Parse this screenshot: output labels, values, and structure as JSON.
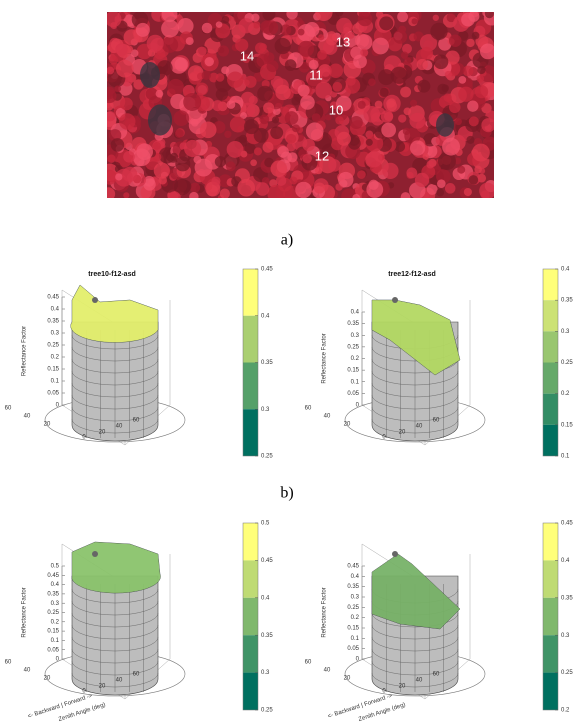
{
  "panel_a": {
    "tree_labels": [
      "14",
      "13",
      "11",
      "10",
      "12"
    ],
    "caption": "a)"
  },
  "panel_b": {
    "caption": "b)",
    "plots": [
      {
        "title": "tree10-f12-asd",
        "z_label": "Reflectance Factor",
        "zticks": [
          0.45,
          0.4,
          0.35,
          0.3,
          0.25,
          0.2,
          0.15,
          0.1,
          0.05,
          0
        ],
        "xticks": [
          60,
          40,
          20,
          0,
          20,
          40,
          60
        ],
        "colorbar_ticks": [
          0.45,
          0.4,
          0.35,
          0.3,
          0.25
        ]
      },
      {
        "title": "tree12-f12-asd",
        "z_label": "Reflectance Factor",
        "zticks": [
          0.4,
          0.35,
          0.3,
          0.25,
          0.2,
          0.15,
          0.1,
          0.05,
          0
        ],
        "xticks": [
          60,
          40,
          20,
          0,
          20,
          40,
          60
        ],
        "colorbar_ticks": [
          0.4,
          0.35,
          0.3,
          0.25,
          0.2,
          0.15,
          0.1
        ]
      }
    ]
  },
  "panel_c": {
    "plots": [
      {
        "z_label": "Reflectance Factor",
        "zticks": [
          0.5,
          0.45,
          0.4,
          0.35,
          0.3,
          0.25,
          0.2,
          0.15,
          0.1,
          0.05,
          0
        ],
        "xticks": [
          60,
          40,
          20,
          0,
          20,
          40,
          60
        ],
        "x_label": "<- Backward | Forward ->",
        "y_label": "Zenith Angle (deg)",
        "colorbar_ticks": [
          0.5,
          0.45,
          0.4,
          0.35,
          0.3,
          0.25
        ]
      },
      {
        "z_label": "Reflectance Factor",
        "zticks": [
          0.45,
          0.4,
          0.35,
          0.3,
          0.25,
          0.2,
          0.15,
          0.1,
          0.05,
          0
        ],
        "xticks": [
          60,
          40,
          20,
          0,
          20,
          40,
          60
        ],
        "x_label": "<- Backward | Forward ->",
        "y_label": "Zenith Angle (deg)",
        "colorbar_ticks": [
          0.45,
          0.4,
          0.35,
          0.3,
          0.25,
          0.2
        ]
      }
    ]
  }
}
